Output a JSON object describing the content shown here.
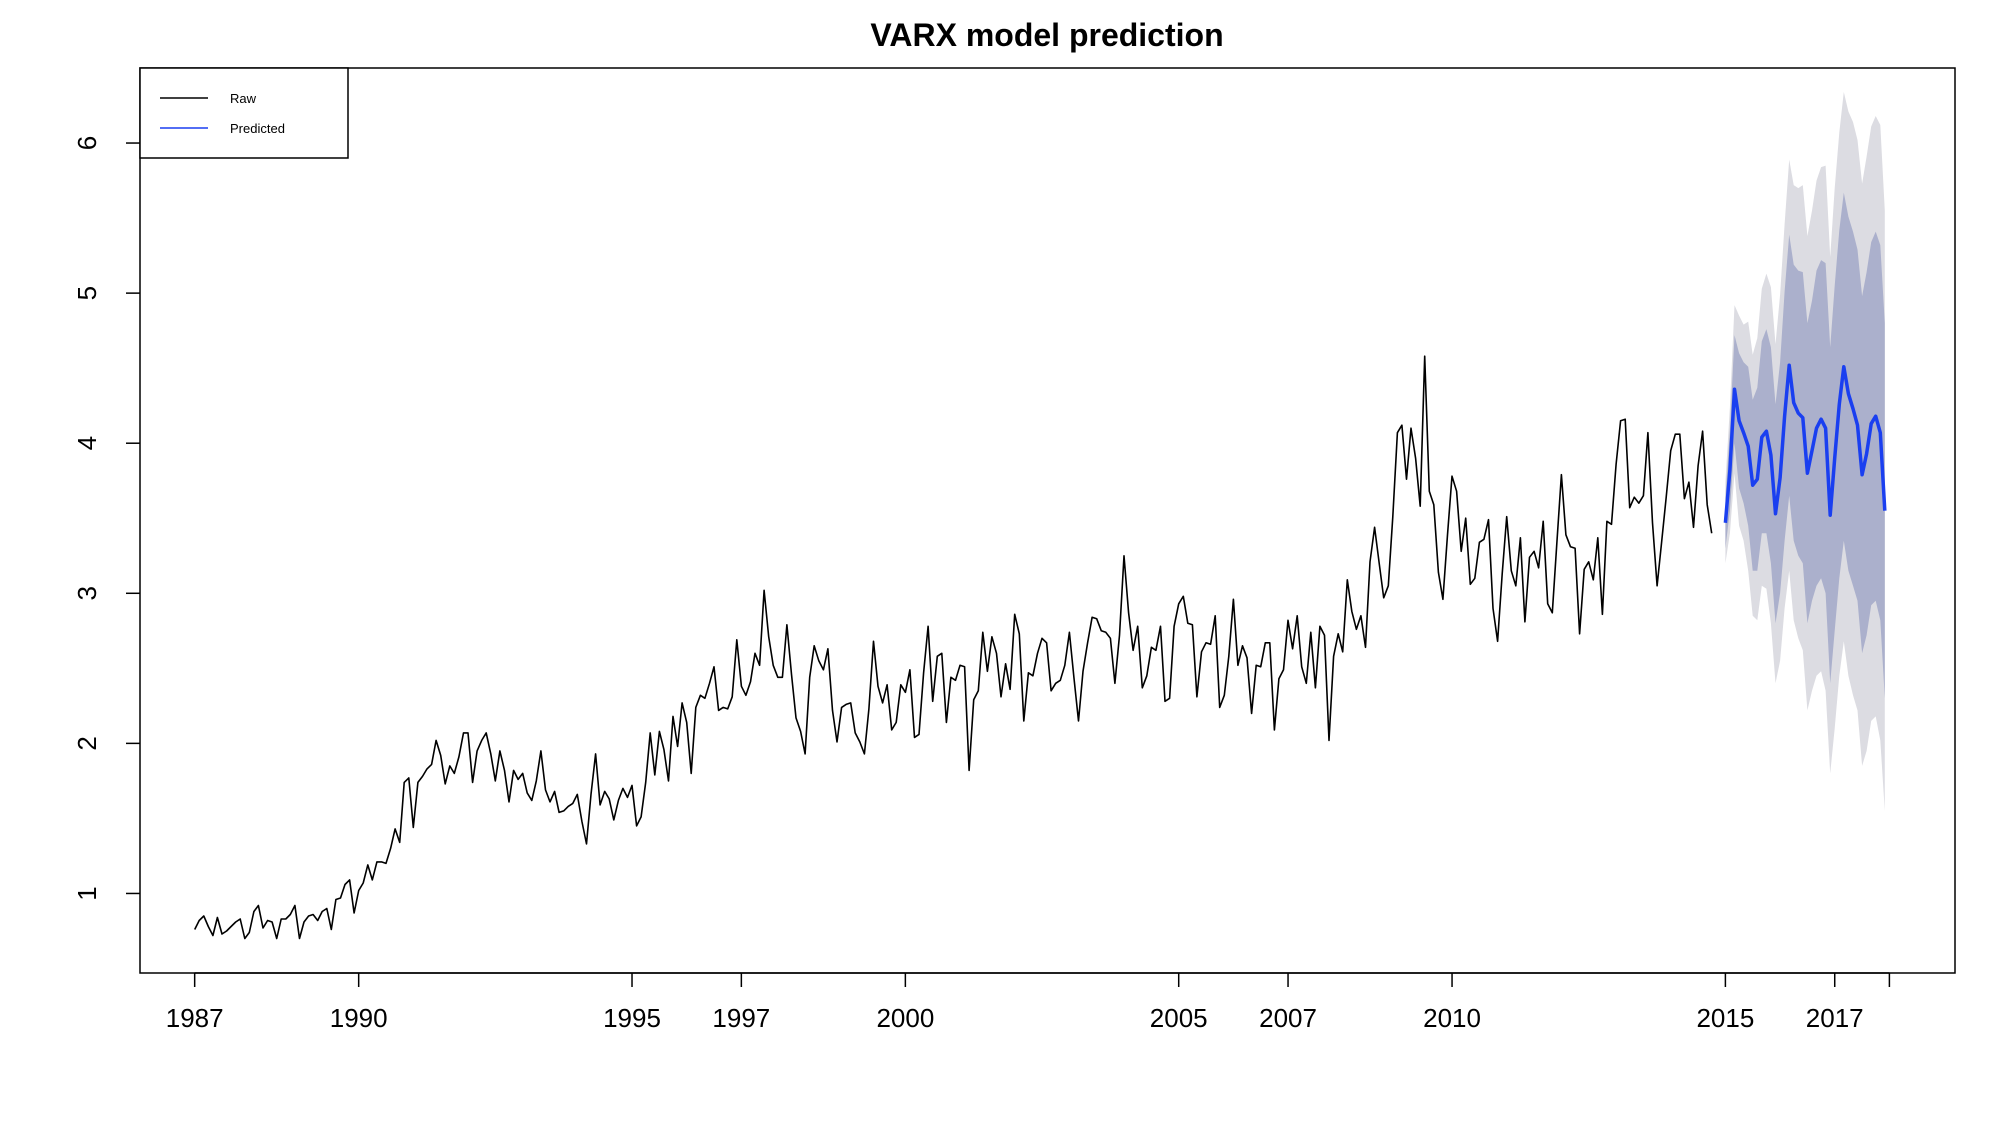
{
  "chart_data": {
    "type": "line",
    "title": "VARX model prediction",
    "xlabel": "",
    "ylabel": "",
    "xlim": [
      1986.0,
      2019.2
    ],
    "ylim": [
      0.47,
      6.5
    ],
    "x_ticks": [
      1987,
      1990,
      1995,
      1997,
      2000,
      2005,
      2007,
      2010,
      2015,
      2017
    ],
    "x_end_tick": 2018.0,
    "y_ticks": [
      1,
      2,
      3,
      4,
      5,
      6
    ],
    "legend": {
      "position": "top-left",
      "entries": [
        "Raw",
        "Predicted"
      ]
    },
    "grid": false,
    "colors": {
      "raw": "#000000",
      "predicted": "#1a3ff0",
      "band_outer": "#dcdce2",
      "band_inner": "#abb0cc"
    },
    "series": [
      {
        "name": "Raw",
        "x_start": 1987.0,
        "step": 0.0833333,
        "values": [
          0.76,
          0.82,
          0.85,
          0.78,
          0.72,
          0.84,
          0.73,
          0.75,
          0.78,
          0.81,
          0.83,
          0.7,
          0.74,
          0.88,
          0.92,
          0.77,
          0.82,
          0.81,
          0.7,
          0.83,
          0.83,
          0.86,
          0.92,
          0.7,
          0.81,
          0.85,
          0.86,
          0.82,
          0.88,
          0.9,
          0.76,
          0.96,
          0.97,
          1.06,
          1.09,
          0.87,
          1.02,
          1.07,
          1.19,
          1.09,
          1.21,
          1.21,
          1.2,
          1.3,
          1.43,
          1.34,
          1.74,
          1.77,
          1.44,
          1.74,
          1.78,
          1.83,
          1.86,
          2.02,
          1.92,
          1.73,
          1.85,
          1.8,
          1.91,
          2.07,
          2.07,
          1.74,
          1.95,
          2.02,
          2.07,
          1.93,
          1.75,
          1.95,
          1.82,
          1.61,
          1.82,
          1.76,
          1.8,
          1.67,
          1.62,
          1.75,
          1.95,
          1.69,
          1.61,
          1.68,
          1.54,
          1.55,
          1.58,
          1.6,
          1.66,
          1.48,
          1.33,
          1.66,
          1.93,
          1.59,
          1.68,
          1.63,
          1.49,
          1.62,
          1.7,
          1.64,
          1.72,
          1.45,
          1.51,
          1.74,
          2.07,
          1.79,
          2.08,
          1.96,
          1.75,
          2.18,
          1.98,
          2.27,
          2.14,
          1.8,
          2.24,
          2.32,
          2.3,
          2.4,
          2.51,
          2.22,
          2.24,
          2.23,
          2.31,
          2.69,
          2.38,
          2.32,
          2.41,
          2.6,
          2.52,
          3.02,
          2.71,
          2.52,
          2.44,
          2.44,
          2.79,
          2.46,
          2.17,
          2.08,
          1.93,
          2.44,
          2.65,
          2.55,
          2.49,
          2.63,
          2.22,
          2.01,
          2.24,
          2.26,
          2.27,
          2.07,
          2.01,
          1.93,
          2.23,
          2.68,
          2.38,
          2.27,
          2.39,
          2.09,
          2.14,
          2.39,
          2.34,
          2.49,
          2.04,
          2.06,
          2.47,
          2.78,
          2.28,
          2.58,
          2.6,
          2.14,
          2.44,
          2.42,
          2.52,
          2.51,
          1.82,
          2.29,
          2.35,
          2.74,
          2.48,
          2.71,
          2.6,
          2.31,
          2.53,
          2.36,
          2.86,
          2.73,
          2.15,
          2.47,
          2.45,
          2.6,
          2.7,
          2.67,
          2.35,
          2.4,
          2.42,
          2.52,
          2.74,
          2.44,
          2.15,
          2.48,
          2.67,
          2.84,
          2.83,
          2.75,
          2.74,
          2.7,
          2.4,
          2.72,
          3.25,
          2.87,
          2.62,
          2.78,
          2.37,
          2.45,
          2.64,
          2.62,
          2.78,
          2.28,
          2.3,
          2.78,
          2.93,
          2.98,
          2.8,
          2.79,
          2.31,
          2.61,
          2.67,
          2.66,
          2.85,
          2.24,
          2.32,
          2.58,
          2.96,
          2.52,
          2.65,
          2.57,
          2.2,
          2.52,
          2.51,
          2.67,
          2.67,
          2.09,
          2.43,
          2.49,
          2.82,
          2.63,
          2.85,
          2.51,
          2.4,
          2.74,
          2.37,
          2.78,
          2.72,
          2.02,
          2.58,
          2.73,
          2.61,
          3.09,
          2.88,
          2.76,
          2.85,
          2.64,
          3.21,
          3.44,
          3.2,
          2.97,
          3.05,
          3.51,
          4.07,
          4.12,
          3.76,
          4.1,
          3.9,
          3.58,
          4.58,
          3.68,
          3.59,
          3.14,
          2.96,
          3.39,
          3.78,
          3.68,
          3.28,
          3.5,
          3.06,
          3.1,
          3.34,
          3.36,
          3.49,
          2.9,
          2.68,
          3.13,
          3.51,
          3.15,
          3.05,
          3.37,
          2.81,
          3.24,
          3.28,
          3.17,
          3.48,
          2.93,
          2.87,
          3.33,
          3.79,
          3.39,
          3.31,
          3.3,
          2.73,
          3.16,
          3.21,
          3.09,
          3.37,
          2.86,
          3.48,
          3.46,
          3.86,
          4.15,
          4.16,
          3.57,
          3.64,
          3.6,
          3.65,
          4.07,
          3.47,
          3.05,
          3.34,
          3.64,
          3.95,
          4.06,
          4.06,
          3.63,
          3.74,
          3.44,
          3.85,
          4.08,
          3.59,
          3.4
        ]
      },
      {
        "name": "Predicted",
        "x_start": 2015.0,
        "step": 0.0833333,
        "values": [
          3.47,
          3.82,
          4.36,
          4.15,
          4.07,
          3.98,
          3.72,
          3.76,
          4.04,
          4.08,
          3.92,
          3.53,
          3.77,
          4.18,
          4.52,
          4.27,
          4.2,
          4.17,
          3.8,
          3.95,
          4.1,
          4.16,
          4.1,
          3.52,
          3.9,
          4.26,
          4.51,
          4.33,
          4.23,
          4.12,
          3.79,
          3.93,
          4.13,
          4.18,
          4.07,
          3.55
        ],
        "lower_80": [
          3.3,
          3.55,
          4.0,
          3.7,
          3.6,
          3.45,
          3.15,
          3.15,
          3.4,
          3.4,
          3.2,
          2.8,
          3.0,
          3.35,
          3.65,
          3.35,
          3.25,
          3.2,
          2.8,
          2.95,
          3.05,
          3.1,
          3.0,
          2.4,
          2.75,
          3.1,
          3.35,
          3.15,
          3.05,
          2.95,
          2.6,
          2.72,
          2.92,
          2.95,
          2.82,
          2.3
        ],
        "upper_80": [
          3.64,
          4.09,
          4.72,
          4.6,
          4.54,
          4.51,
          4.29,
          4.37,
          4.68,
          4.76,
          4.64,
          4.26,
          4.54,
          5.01,
          5.39,
          5.19,
          5.15,
          5.14,
          4.8,
          4.95,
          5.15,
          5.22,
          5.2,
          4.64,
          5.05,
          5.42,
          5.67,
          5.51,
          5.41,
          5.29,
          4.98,
          5.14,
          5.34,
          5.41,
          5.32,
          4.8
        ],
        "lower_95": [
          3.2,
          3.4,
          3.8,
          3.45,
          3.35,
          3.15,
          2.85,
          2.82,
          3.05,
          3.03,
          2.8,
          2.4,
          2.55,
          2.9,
          3.15,
          2.82,
          2.7,
          2.62,
          2.22,
          2.35,
          2.45,
          2.48,
          2.35,
          1.8,
          2.1,
          2.45,
          2.68,
          2.45,
          2.32,
          2.22,
          1.85,
          1.95,
          2.15,
          2.18,
          2.02,
          1.55
        ],
        "upper_95": [
          3.74,
          4.24,
          4.92,
          4.85,
          4.79,
          4.81,
          4.59,
          4.7,
          5.03,
          5.13,
          5.04,
          4.66,
          4.99,
          5.46,
          5.89,
          5.72,
          5.7,
          5.72,
          5.38,
          5.55,
          5.75,
          5.84,
          5.85,
          5.24,
          5.7,
          6.07,
          6.34,
          6.21,
          6.14,
          6.02,
          5.73,
          5.91,
          6.11,
          6.18,
          6.12,
          5.55
        ]
      }
    ]
  }
}
